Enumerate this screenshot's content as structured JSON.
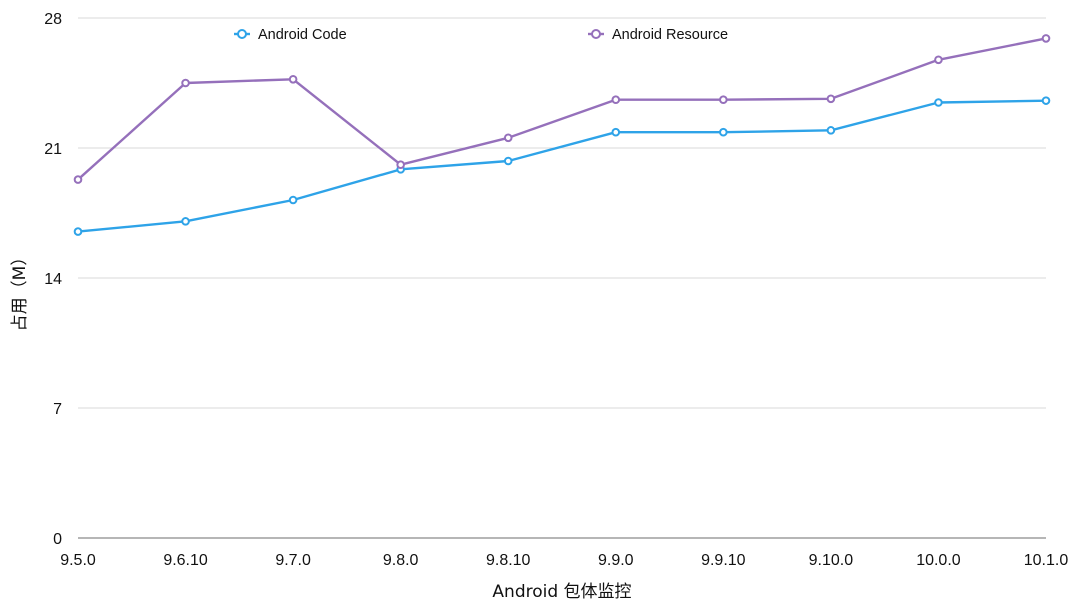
{
  "chart_data": {
    "type": "line",
    "categories": [
      "9.5.0",
      "9.6.10",
      "9.7.0",
      "9.8.0",
      "9.8.10",
      "9.9.0",
      "9.9.10",
      "9.10.0",
      "10.0.0",
      "10.1.0"
    ],
    "series": [
      {
        "name": "Android Code",
        "color": "#2ea3e8",
        "values": [
          16.5,
          17.05,
          18.2,
          19.85,
          20.3,
          21.85,
          21.85,
          21.95,
          23.45,
          23.55
        ]
      },
      {
        "name": "Android Resource",
        "color": "#9570bb",
        "values": [
          19.3,
          24.5,
          24.7,
          20.1,
          21.55,
          23.6,
          23.6,
          23.65,
          25.75,
          26.9
        ]
      }
    ],
    "xlabel": "Android 包体监控",
    "ylabel": "占用（M）",
    "ylim": [
      0,
      28
    ],
    "yticks": [
      "0",
      "7",
      "14",
      "21",
      "28"
    ],
    "grid": true,
    "legend_position": "top"
  }
}
